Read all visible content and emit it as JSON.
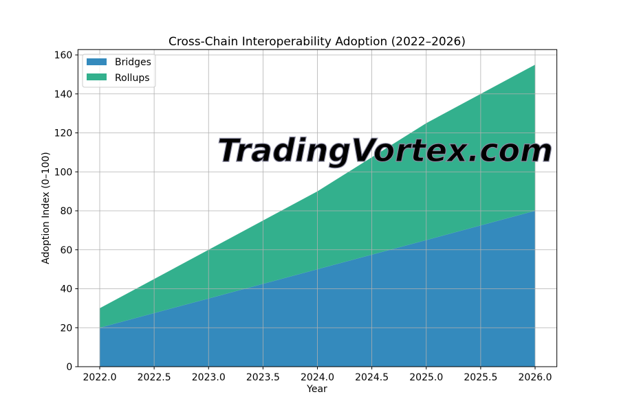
{
  "chart_data": {
    "type": "area",
    "stacked": true,
    "title": "Cross-Chain Interoperability Adoption (2022–2026)",
    "xlabel": "Year",
    "ylabel": "Adoption Index (0–100)",
    "x": [
      2022,
      2023,
      2024,
      2025,
      2026
    ],
    "series": [
      {
        "name": "Bridges",
        "values": [
          20,
          35,
          50,
          65,
          80
        ],
        "color": "#348abd"
      },
      {
        "name": "Rollups",
        "values": [
          10,
          25,
          40,
          60,
          75
        ],
        "color": "#33b08d"
      }
    ],
    "xlim": [
      2021.8,
      2026.2
    ],
    "ylim": [
      0,
      162.75
    ],
    "xticks": [
      "2022.0",
      "2022.5",
      "2023.0",
      "2023.5",
      "2024.0",
      "2024.5",
      "2025.0",
      "2025.5",
      "2026.0"
    ],
    "yticks": [
      "0",
      "20",
      "40",
      "60",
      "80",
      "100",
      "120",
      "140",
      "160"
    ],
    "grid": true,
    "legend": "upper-left"
  },
  "watermark": "TradingVortex.com"
}
